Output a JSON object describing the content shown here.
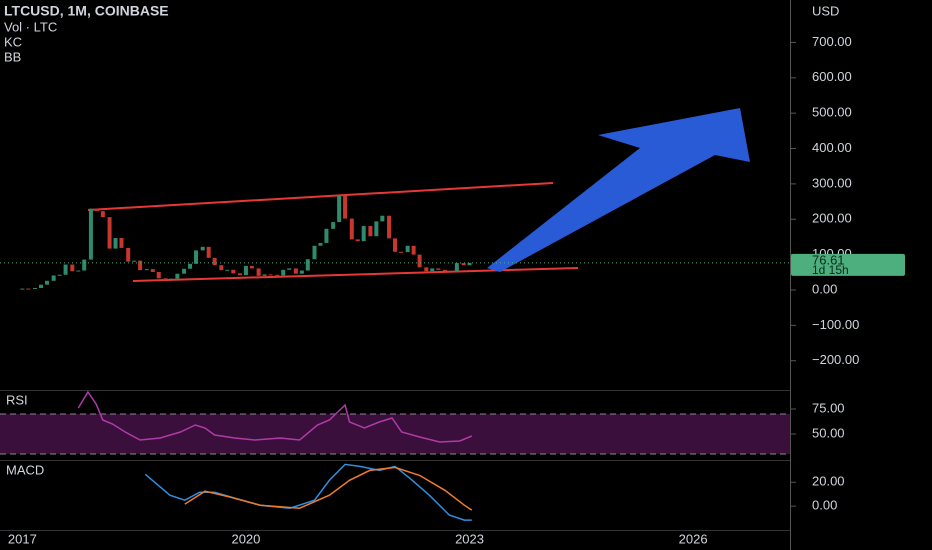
{
  "chart_data": [
    {
      "type": "candlestick",
      "title": "LTCUSD, 1M, COINBASE",
      "subtitles": [
        "Vol · LTC",
        "KC",
        "BB"
      ],
      "axis_label": "USD",
      "x": [
        2017,
        2017.08,
        2017.17,
        2017.25,
        2017.33,
        2017.42,
        2017.5,
        2017.58,
        2017.67,
        2017.75,
        2017.83,
        2017.92,
        2018,
        2018.08,
        2018.17,
        2018.25,
        2018.33,
        2018.42,
        2018.5,
        2018.58,
        2018.67,
        2018.75,
        2018.83,
        2018.92,
        2019,
        2019.08,
        2019.17,
        2019.25,
        2019.33,
        2019.42,
        2019.5,
        2019.58,
        2019.67,
        2019.75,
        2019.83,
        2019.92,
        2020,
        2020.08,
        2020.17,
        2020.25,
        2020.33,
        2020.42,
        2020.5,
        2020.58,
        2020.67,
        2020.75,
        2020.83,
        2020.92,
        2021,
        2021.08,
        2021.17,
        2021.25,
        2021.33,
        2021.42,
        2021.5,
        2021.58,
        2021.67,
        2021.75,
        2021.83,
        2021.92,
        2022,
        2022.08,
        2022.17,
        2022.25,
        2022.33,
        2022.42,
        2022.5,
        2022.58,
        2022.67,
        2022.75,
        2022.83,
        2022.92,
        2023
      ],
      "values": [
        4,
        3.8,
        5.7,
        15,
        26,
        41,
        43,
        72,
        53,
        55,
        86,
        230,
        223,
        206,
        117,
        147,
        119,
        80,
        83,
        56,
        59,
        51,
        33,
        31,
        32,
        46,
        60,
        74,
        112,
        122,
        91,
        70,
        56,
        57,
        47,
        42,
        68,
        61,
        40,
        44,
        43,
        41,
        57,
        61,
        46,
        55,
        87,
        125,
        133,
        173,
        192,
        267,
        202,
        143,
        138,
        181,
        152,
        194,
        210,
        146,
        108,
        107,
        125,
        100,
        64,
        53,
        61,
        57,
        53,
        54,
        76,
        70,
        76.61
      ],
      "up_color": "#2e8b6e",
      "down_color": "#c8372d",
      "ylim": [
        -280,
        820
      ],
      "yticks": [
        {
          "value": 700,
          "label": "700.00"
        },
        {
          "value": 600,
          "label": "600.00"
        },
        {
          "value": 500,
          "label": "500.00"
        },
        {
          "value": 400,
          "label": "400.00"
        },
        {
          "value": 300,
          "label": "300.00"
        },
        {
          "value": 200,
          "label": "200.00"
        },
        {
          "value": 100,
          "label": "100.00"
        },
        {
          "value": 0,
          "label": "0.00"
        },
        {
          "value": -100,
          "label": "−100.00"
        },
        {
          "value": -200,
          "label": "−200.00"
        }
      ],
      "xlim": [
        2016.7,
        2027.3
      ],
      "xticks": [
        2017,
        2020,
        2023,
        2026
      ],
      "last_price": 76.61,
      "countdown": "1d 15h",
      "price_label_color": "#4caf7d"
    },
    {
      "type": "line",
      "title": "RSI",
      "series": [
        {
          "color": "#b03aa8",
          "x": [
            2017.75,
            2017.88,
            2017.99,
            2018.08,
            2018.21,
            2018.38,
            2018.58,
            2018.85,
            2019.12,
            2019.32,
            2019.45,
            2019.58,
            2019.85,
            2020.12,
            2020.46,
            2020.72,
            2020.96,
            2021.12,
            2021.33,
            2021.39,
            2021.59,
            2021.79,
            2021.96,
            2022.09,
            2022.33,
            2022.6,
            2022.87,
            2023.03
          ],
          "values": [
            76,
            92,
            80,
            64,
            60,
            52,
            44,
            46,
            52,
            59,
            56,
            49,
            46,
            44,
            46,
            44,
            59,
            64,
            79,
            62,
            56,
            62,
            66,
            52,
            47,
            42,
            43,
            48
          ]
        }
      ],
      "bands": [
        30,
        70
      ],
      "band_color": "#3a0f3c",
      "ylim": [
        26,
        92
      ],
      "yticks": [
        {
          "value": 75,
          "label": "75.00"
        },
        {
          "value": 50,
          "label": "50.00"
        }
      ]
    },
    {
      "type": "line",
      "title": "MACD",
      "series": [
        {
          "color": "#2f8ee0",
          "x": [
            2018.65,
            2018.98,
            2019.18,
            2019.38,
            2019.58,
            2019.85,
            2020.19,
            2020.59,
            2020.92,
            2021.12,
            2021.33,
            2021.53,
            2021.79,
            2022.0,
            2022.2,
            2022.46,
            2022.73,
            2022.93,
            2023.03
          ],
          "values": [
            26.7,
            9.2,
            5,
            11.7,
            11.7,
            6.7,
            0.8,
            -1.7,
            5,
            21.7,
            35,
            33.3,
            30,
            33.3,
            23.3,
            9.2,
            -7.5,
            -11.7,
            -11.7
          ]
        },
        {
          "color": "#f07c2a",
          "x": [
            2019.18,
            2019.45,
            2019.79,
            2020.19,
            2020.72,
            2021.12,
            2021.39,
            2021.66,
            2022.0,
            2022.33,
            2022.67,
            2022.93,
            2023.03
          ],
          "values": [
            1.7,
            12.5,
            7.5,
            0.8,
            -1.7,
            9.2,
            21.7,
            30,
            32.5,
            25.8,
            13.3,
            0.8,
            -3.3
          ]
        }
      ],
      "ylim": [
        -20,
        37
      ],
      "yticks": [
        {
          "value": 20,
          "label": "20.00"
        },
        {
          "value": 0,
          "label": "0.00"
        }
      ]
    }
  ]
}
